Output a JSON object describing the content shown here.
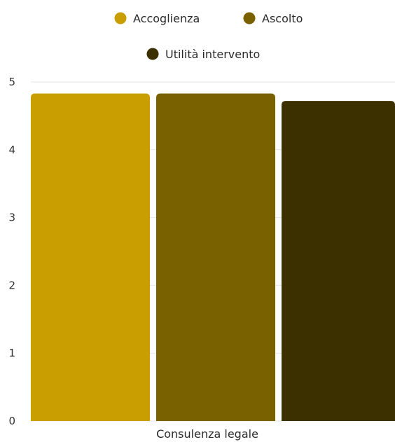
{
  "chart_data": {
    "type": "bar",
    "categories": [
      "Consulenza legale"
    ],
    "series": [
      {
        "name": "Accoglienza",
        "values": [
          4.83
        ],
        "color": "#C99E00"
      },
      {
        "name": "Ascolto",
        "values": [
          4.83
        ],
        "color": "#7A6100"
      },
      {
        "name": "Utilità intervento",
        "values": [
          4.72
        ],
        "color": "#3D3000"
      }
    ],
    "title": "",
    "xlabel": "",
    "ylabel": "",
    "ylim": [
      0,
      5
    ],
    "yticks": [
      "0",
      "1",
      "2",
      "3",
      "4",
      "5"
    ],
    "grid": true,
    "legend": "top-center"
  }
}
